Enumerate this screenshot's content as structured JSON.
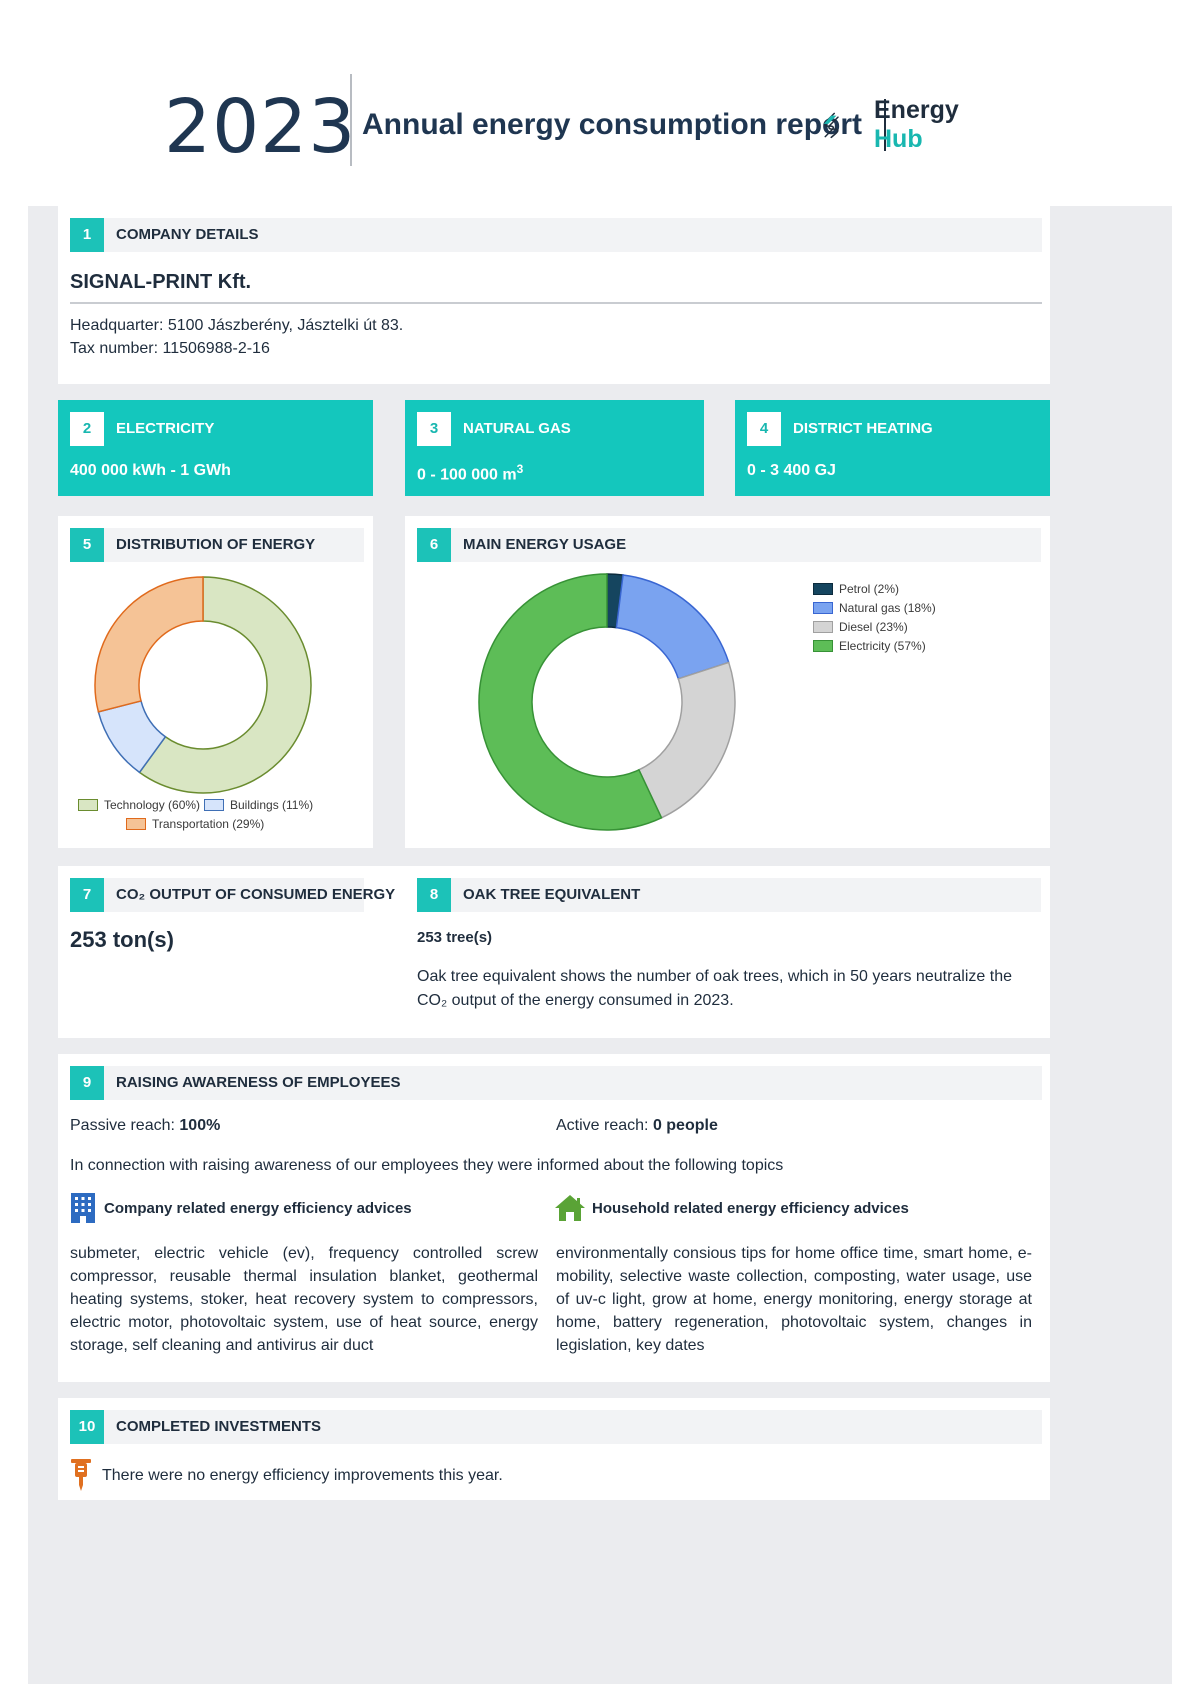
{
  "header": {
    "year": "2023",
    "title": "Annual energy consumption report",
    "logo_word1": "Energy",
    "logo_word2": "Hub"
  },
  "s1": {
    "num": "1",
    "title": "COMPANY DETAILS",
    "company": "SIGNAL-PRINT Kft.",
    "hq": "Headquarter: 5100 Jászberény, Jásztelki út 83.",
    "tax": "Tax number: 11506988-2-16"
  },
  "s2": {
    "num": "2",
    "title": "ELECTRICITY",
    "value": "400 000 kWh - 1 GWh"
  },
  "s3": {
    "num": "3",
    "title": "NATURAL GAS",
    "value": "0 - 100 000 m",
    "value_sup": "3"
  },
  "s4": {
    "num": "4",
    "title": "DISTRICT HEATING",
    "value": "0 - 3 400 GJ"
  },
  "s5": {
    "num": "5",
    "title": "DISTRIBUTION OF ENERGY"
  },
  "s6": {
    "num": "6",
    "title": "MAIN ENERGY USAGE"
  },
  "s7": {
    "num": "7",
    "title": "CO₂ OUTPUT OF CONSUMED ENERGY",
    "value": "253 ton(s)"
  },
  "s8": {
    "num": "8",
    "title": "OAK TREE EQUIVALENT",
    "value": "253 tree(s)",
    "desc": "Oak tree equivalent shows the number of oak trees, which in 50 years neutralize the CO₂ output of the energy consumed in 2023."
  },
  "s9": {
    "num": "9",
    "title": "RAISING AWARENESS OF EMPLOYEES",
    "passive_label": "Passive reach: ",
    "passive_value": "100%",
    "active_label": "Active reach: ",
    "active_value": "0 people",
    "intro": "In connection with raising awareness of our employees they were informed about the following topics",
    "company_title": "Company related energy efficiency advices",
    "company_text": "submeter, electric vehicle (ev), frequency controlled screw compressor, reusable thermal insulation blanket, geothermal heating systems, stoker, heat recovery system to compressors, electric motor, photovoltaic system, use of heat source, energy storage, self cleaning and antivirus air duct",
    "household_title": "Household related energy efficiency advices",
    "household_text": "environmentally consious tips for home office time, smart home, e-mobility, selective waste collection, composting, water usage, use of uv-c light, grow at home, energy monitoring, energy storage at home, battery regeneration, photovoltaic system, changes in legislation, key dates"
  },
  "s10": {
    "num": "10",
    "title": "COMPLETED INVESTMENTS",
    "text": "There were no energy efficiency improvements this year."
  },
  "chart_data": [
    {
      "type": "pie",
      "variant": "donut",
      "categories": [
        "Technology (60%)",
        "Buildings (11%)",
        "Transportation (29%)"
      ],
      "values": [
        60,
        11,
        29
      ],
      "colors": [
        "#d9e6c3",
        "#d6e4fb",
        "#f5c396"
      ],
      "strokes": [
        "#6a8c2f",
        "#3f6fb5",
        "#e06a1c"
      ],
      "legend": "bottom"
    },
    {
      "type": "pie",
      "variant": "donut",
      "categories": [
        "Petrol (2%)",
        "Natural gas (18%)",
        "Diesel (23%)",
        "Electricity (57%)"
      ],
      "values": [
        2,
        18,
        23,
        57
      ],
      "colors": [
        "#15455f",
        "#7aa3f0",
        "#d4d4d4",
        "#5dbd57"
      ],
      "strokes": [
        "#0c2b3d",
        "#3966d2",
        "#a0a0a0",
        "#379236"
      ],
      "legend": "right"
    }
  ]
}
